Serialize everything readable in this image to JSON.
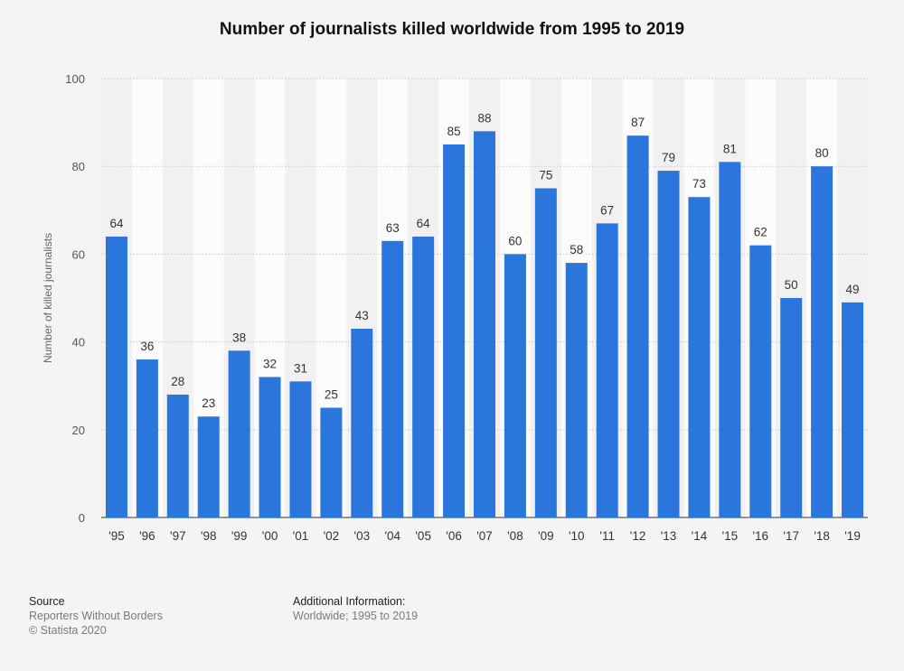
{
  "chart_data": {
    "type": "bar",
    "title": "Number of journalists killed worldwide from 1995 to 2019",
    "xlabel": "",
    "ylabel": "Number of killed journalists",
    "ylim": [
      0,
      100
    ],
    "yticks": [
      0,
      20,
      40,
      60,
      80,
      100
    ],
    "grid": true,
    "categories": [
      "'95",
      "'96",
      "'97",
      "'98",
      "'99",
      "'00",
      "'01",
      "'02",
      "'03",
      "'04",
      "'05",
      "'06",
      "'07",
      "'08",
      "'09",
      "'10",
      "'11",
      "'12",
      "'13",
      "'14",
      "'15",
      "'16",
      "'17",
      "'18",
      "'19"
    ],
    "values": [
      64,
      36,
      28,
      23,
      38,
      32,
      31,
      25,
      43,
      63,
      64,
      85,
      88,
      60,
      75,
      58,
      67,
      87,
      79,
      73,
      81,
      62,
      50,
      80,
      49
    ],
    "bar_color": "#2a76dd"
  },
  "footer": {
    "source_heading": "Source",
    "source_name": "Reporters Without Borders",
    "copyright": "© Statista 2020",
    "info_heading": "Additional Information:",
    "info_text": "Worldwide; 1995 to 2019"
  }
}
